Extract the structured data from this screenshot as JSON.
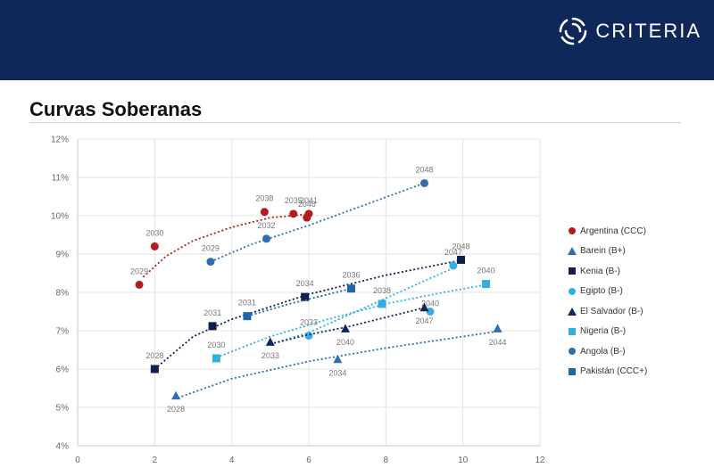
{
  "header": {
    "brand": "CRITERIA",
    "logo_icon": "criteria-ring-logo-icon"
  },
  "slide": {
    "title": "Curvas Soberanas"
  },
  "chart_data": {
    "type": "scatter",
    "title": "",
    "xlabel": "",
    "ylabel": "",
    "xlim": [
      0,
      12
    ],
    "ylim": [
      4,
      12
    ],
    "x_ticks": [
      0,
      2,
      4,
      6,
      8,
      10,
      12
    ],
    "y_ticks": [
      4,
      5,
      6,
      7,
      8,
      9,
      10,
      11,
      12
    ],
    "y_tick_format": "%",
    "grid": true,
    "trendlines": true,
    "legend_position": "right",
    "series": [
      {
        "name": "Argentina (CCC)",
        "marker": "circle",
        "color": "#b31c1c",
        "points": [
          {
            "x": 1.6,
            "y": 8.2,
            "label": "2029"
          },
          {
            "x": 2.0,
            "y": 9.2,
            "label": "2030"
          },
          {
            "x": 4.85,
            "y": 10.1,
            "label": "2038"
          },
          {
            "x": 5.6,
            "y": 10.05,
            "label": "2035"
          },
          {
            "x": 6.0,
            "y": 10.05,
            "label": "2041"
          },
          {
            "x": 5.95,
            "y": 9.95,
            "label": "2046"
          }
        ],
        "trend": [
          [
            1.7,
            8.4
          ],
          [
            2.3,
            8.95
          ],
          [
            3,
            9.35
          ],
          [
            4,
            9.7
          ],
          [
            5,
            9.95
          ],
          [
            6.1,
            10.05
          ]
        ]
      },
      {
        "name": "Barein (B+)",
        "marker": "triangle",
        "color": "#2f6fb1",
        "points": [
          {
            "x": 2.55,
            "y": 5.3,
            "label": "2028"
          },
          {
            "x": 6.75,
            "y": 6.25,
            "label": "2034"
          },
          {
            "x": 10.9,
            "y": 7.05,
            "label": "2044"
          }
        ],
        "trend": [
          [
            2.6,
            5.25
          ],
          [
            4,
            5.75
          ],
          [
            6,
            6.2
          ],
          [
            8,
            6.55
          ],
          [
            10,
            6.85
          ],
          [
            11,
            7.0
          ]
        ]
      },
      {
        "name": "Kenia (B-)",
        "marker": "square",
        "color": "#0e1f4e",
        "points": [
          {
            "x": 2.0,
            "y": 6.0,
            "label": "2028"
          },
          {
            "x": 3.5,
            "y": 7.12,
            "label": "2031"
          },
          {
            "x": 5.9,
            "y": 7.88,
            "label": "2034"
          },
          {
            "x": 9.95,
            "y": 8.85,
            "label": "2048"
          }
        ],
        "trend": [
          [
            2,
            6.0
          ],
          [
            3,
            6.85
          ],
          [
            4,
            7.3
          ],
          [
            6,
            7.95
          ],
          [
            8,
            8.45
          ],
          [
            10,
            8.85
          ]
        ]
      },
      {
        "name": "Egipto (B-)",
        "marker": "circle",
        "color": "#33aee2",
        "points": [
          {
            "x": 6.0,
            "y": 6.87,
            "label": "2033"
          },
          {
            "x": 9.75,
            "y": 8.7,
            "label": "2047"
          },
          {
            "x": 9.15,
            "y": 7.5,
            "label": "2040"
          }
        ],
        "trend": [
          [
            5,
            6.65
          ],
          [
            6,
            6.95
          ],
          [
            7,
            7.4
          ],
          [
            8,
            7.85
          ],
          [
            9,
            8.3
          ],
          [
            9.9,
            8.7
          ]
        ]
      },
      {
        "name": "El Salvador (B-)",
        "marker": "triangle",
        "color": "#10275a",
        "points": [
          {
            "x": 5.0,
            "y": 6.7,
            "label": "2033"
          },
          {
            "x": 6.95,
            "y": 7.05,
            "label": "2040"
          },
          {
            "x": 9.0,
            "y": 7.6,
            "label": "2047"
          }
        ],
        "trend": [
          [
            5,
            6.65
          ],
          [
            6,
            6.9
          ],
          [
            7,
            7.1
          ],
          [
            8,
            7.35
          ],
          [
            9,
            7.6
          ]
        ]
      },
      {
        "name": "Nigeria (B-)",
        "marker": "square",
        "color": "#33aee2",
        "points": [
          {
            "x": 3.6,
            "y": 6.28,
            "label": "2030"
          },
          {
            "x": 7.9,
            "y": 7.7,
            "label": "2038"
          },
          {
            "x": 10.6,
            "y": 8.22,
            "label": "2040"
          }
        ],
        "trend": [
          [
            3.6,
            6.3
          ],
          [
            5,
            6.85
          ],
          [
            6.5,
            7.3
          ],
          [
            8,
            7.7
          ],
          [
            9.5,
            8.0
          ],
          [
            10.6,
            8.2
          ]
        ]
      },
      {
        "name": "Angola (B-)",
        "marker": "circle",
        "color": "#2f6fb1",
        "points": [
          {
            "x": 3.45,
            "y": 8.8,
            "label": "2029"
          },
          {
            "x": 4.9,
            "y": 9.4,
            "label": "2032"
          },
          {
            "x": 9.0,
            "y": 10.85,
            "label": "2048"
          }
        ],
        "trend": [
          [
            3.45,
            8.8
          ],
          [
            4.5,
            9.25
          ],
          [
            6,
            9.75
          ],
          [
            7.5,
            10.3
          ],
          [
            9,
            10.85
          ]
        ]
      },
      {
        "name": "Pakistán (CCC+)",
        "marker": "square",
        "color": "#1f65a8",
        "points": [
          {
            "x": 4.4,
            "y": 7.38,
            "label": "2031"
          },
          {
            "x": 7.1,
            "y": 8.1,
            "label": "2036"
          }
        ],
        "trend": [
          [
            4.4,
            7.38
          ],
          [
            5.5,
            7.7
          ],
          [
            7.1,
            8.1
          ]
        ]
      }
    ]
  }
}
